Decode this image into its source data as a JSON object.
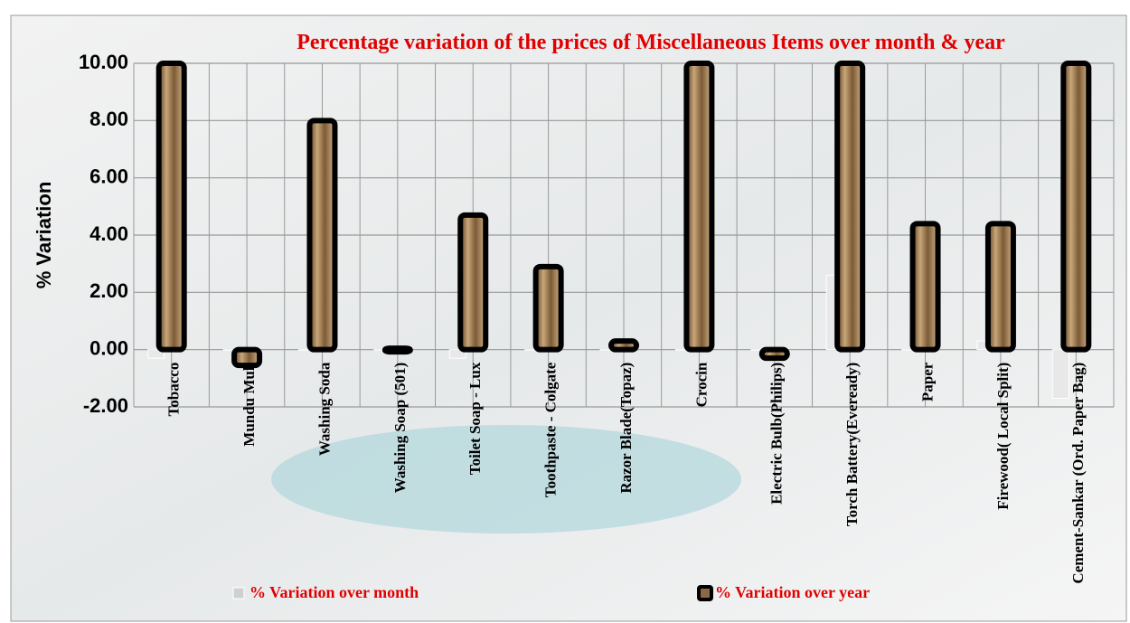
{
  "chart_data": {
    "type": "bar",
    "title": "Percentage variation of the prices of Miscellaneous Items over month & year",
    "y_label": "% Variation",
    "categories": [
      "Tobacco",
      "Mundu Mull",
      "Washing Soda",
      "Washing Soap (501)",
      "Toilet Soap - Lux",
      "Toothpaste - Colgate",
      "Razor Blade(Topaz)",
      "Crocin",
      "Electric Bulb(Philips)",
      "Torch Battery(Eveready)",
      "Paper",
      "Firewood( Local Split)",
      "Cement-Sankar (Ord. Paper Bag)"
    ],
    "series": [
      {
        "name": "%  Variation over month",
        "color": "#e8e8e8",
        "values": [
          -0.3,
          0,
          0,
          0,
          -0.3,
          0,
          0,
          0,
          0,
          2.6,
          0,
          0.3,
          -1.7
        ]
      },
      {
        "name": "%  Variation over year",
        "color": "#8a6a45",
        "values": [
          10,
          -0.55,
          8.0,
          0.05,
          4.7,
          2.9,
          0.3,
          10,
          -0.3,
          10,
          4.4,
          4.4,
          10
        ]
      }
    ],
    "ylim": [
      -2,
      10
    ],
    "yticks": [
      {
        "value": -2,
        "label": "-2.00"
      },
      {
        "value": 0,
        "label": "0.00"
      },
      {
        "value": 2,
        "label": "2.00"
      },
      {
        "value": 4,
        "label": "4.00"
      },
      {
        "value": 6,
        "label": "6.00"
      },
      {
        "value": 8,
        "label": "8.00"
      },
      {
        "value": 10,
        "label": "10.00"
      }
    ],
    "grid": true
  }
}
